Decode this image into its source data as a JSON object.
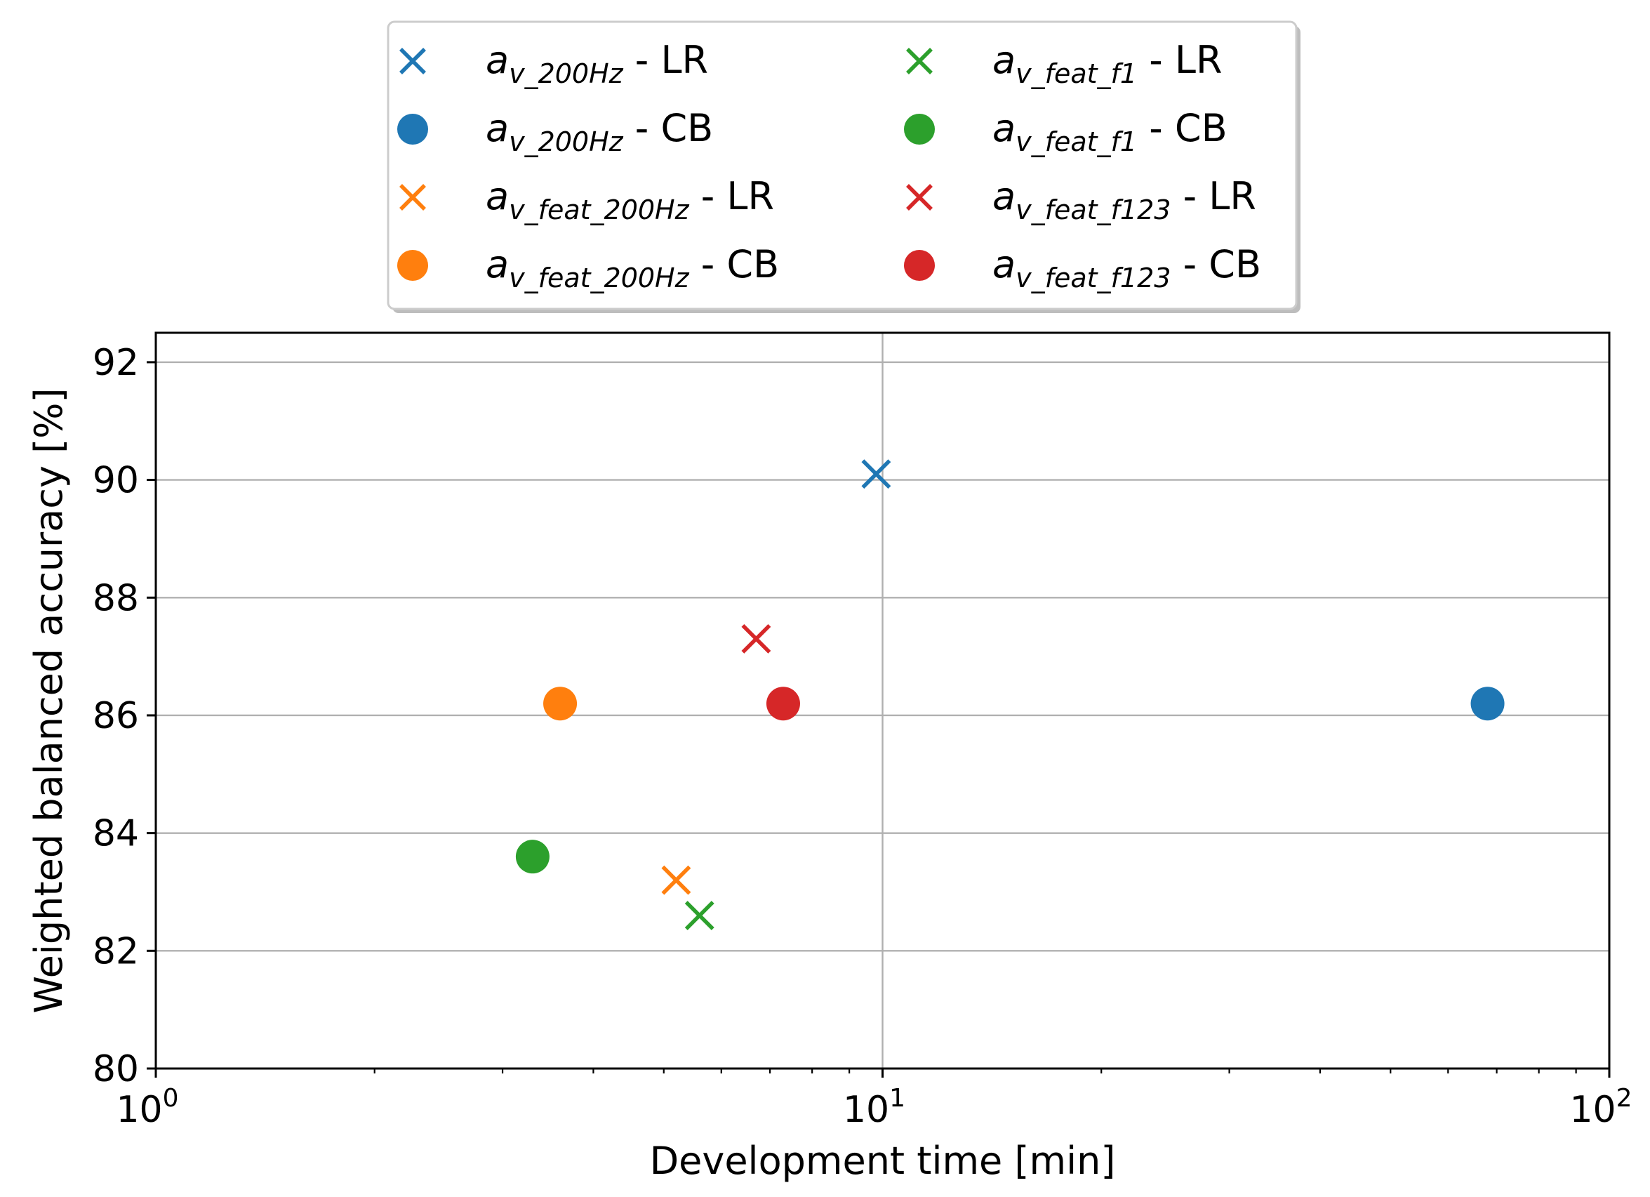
{
  "chart_data": {
    "type": "scatter",
    "xlabel": "Development time [min]",
    "ylabel": "Weighted balanced accuracy [%]",
    "xscale": "log",
    "xlim": [
      1,
      100
    ],
    "ylim": [
      80,
      92.5
    ],
    "xticks": [
      {
        "value": 1,
        "base": "10",
        "exp": "0"
      },
      {
        "value": 10,
        "base": "10",
        "exp": "1"
      },
      {
        "value": 100,
        "base": "10",
        "exp": "2"
      }
    ],
    "yticks": [
      {
        "value": 80,
        "label": "80"
      },
      {
        "value": 82,
        "label": "82"
      },
      {
        "value": 84,
        "label": "84"
      },
      {
        "value": 86,
        "label": "86"
      },
      {
        "value": 88,
        "label": "88"
      },
      {
        "value": 90,
        "label": "90"
      },
      {
        "value": 92,
        "label": "92"
      }
    ],
    "grid": true,
    "legend_position": "top-outside",
    "series": [
      {
        "name": "a_v_200Hz - LR",
        "base": "a",
        "sub": "v_200Hz",
        "model": "LR",
        "marker": "x",
        "color": "#1f77b4",
        "x": 9.8,
        "y": 90.1
      },
      {
        "name": "a_v_200Hz - CB",
        "base": "a",
        "sub": "v_200Hz",
        "model": "CB",
        "marker": "o",
        "color": "#1f77b4",
        "x": 68,
        "y": 86.2
      },
      {
        "name": "a_v_feat_200Hz - LR",
        "base": "a",
        "sub": "v_feat_200Hz",
        "model": "LR",
        "marker": "x",
        "color": "#ff7f0e",
        "x": 5.2,
        "y": 83.2
      },
      {
        "name": "a_v_feat_200Hz - CB",
        "base": "a",
        "sub": "v_feat_200Hz",
        "model": "CB",
        "marker": "o",
        "color": "#ff7f0e",
        "x": 3.6,
        "y": 86.2
      },
      {
        "name": "a_v_feat_f1 - LR",
        "base": "a",
        "sub": "v_feat_f1",
        "model": "LR",
        "marker": "x",
        "color": "#2ca02c",
        "x": 5.6,
        "y": 82.6
      },
      {
        "name": "a_v_feat_f1 - CB",
        "base": "a",
        "sub": "v_feat_f1",
        "model": "CB",
        "marker": "o",
        "color": "#2ca02c",
        "x": 3.3,
        "y": 83.6
      },
      {
        "name": "a_v_feat_f123 - LR",
        "base": "a",
        "sub": "v_feat_f123",
        "model": "LR",
        "marker": "x",
        "color": "#d62728",
        "x": 6.7,
        "y": 87.3
      },
      {
        "name": "a_v_feat_f123 - CB",
        "base": "a",
        "sub": "v_feat_f123",
        "model": "CB",
        "marker": "o",
        "color": "#d62728",
        "x": 7.3,
        "y": 86.2
      }
    ]
  }
}
